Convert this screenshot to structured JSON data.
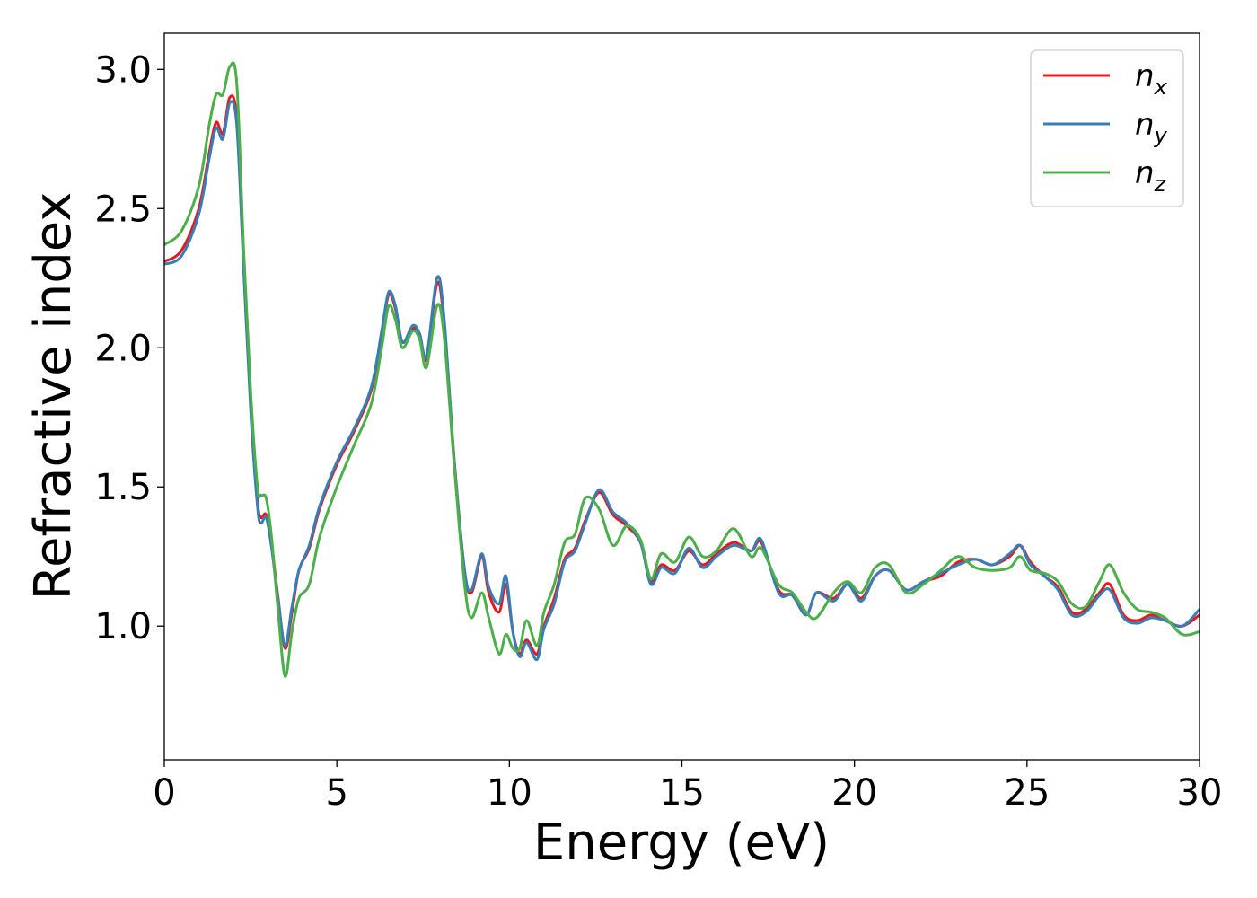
{
  "chart_data": {
    "type": "line",
    "title": "",
    "xlabel": "Energy (eV)",
    "ylabel": "Refractive index",
    "xlim": [
      0,
      30
    ],
    "ylim": [
      0.52,
      3.13
    ],
    "xticks": [
      0,
      5,
      10,
      15,
      20,
      25,
      30
    ],
    "yticks": [
      1.0,
      1.5,
      2.0,
      2.5,
      3.0
    ],
    "xtick_labels": [
      "0",
      "5",
      "10",
      "15",
      "20",
      "25",
      "30"
    ],
    "ytick_labels": [
      "1.0",
      "1.5",
      "2.0",
      "2.5",
      "3.0"
    ],
    "grid": false,
    "legend_position": "top-right",
    "series": [
      {
        "name": "n_x",
        "label_main": "n",
        "label_sub": "x",
        "color": "#e41a1c",
        "points": [
          [
            0,
            2.31
          ],
          [
            0.5,
            2.35
          ],
          [
            1.0,
            2.5
          ],
          [
            1.3,
            2.7
          ],
          [
            1.5,
            2.81
          ],
          [
            1.7,
            2.77
          ],
          [
            1.9,
            2.9
          ],
          [
            2.1,
            2.82
          ],
          [
            2.3,
            2.3
          ],
          [
            2.5,
            1.8
          ],
          [
            2.7,
            1.45
          ],
          [
            2.8,
            1.39
          ],
          [
            2.95,
            1.4
          ],
          [
            3.1,
            1.3
          ],
          [
            3.3,
            1.1
          ],
          [
            3.5,
            0.92
          ],
          [
            3.7,
            1.05
          ],
          [
            3.9,
            1.2
          ],
          [
            4.2,
            1.28
          ],
          [
            4.5,
            1.42
          ],
          [
            5.0,
            1.58
          ],
          [
            5.5,
            1.7
          ],
          [
            6.0,
            1.85
          ],
          [
            6.3,
            2.05
          ],
          [
            6.5,
            2.19
          ],
          [
            6.7,
            2.14
          ],
          [
            6.9,
            2.02
          ],
          [
            7.2,
            2.07
          ],
          [
            7.4,
            2.04
          ],
          [
            7.6,
            1.96
          ],
          [
            7.9,
            2.23
          ],
          [
            8.1,
            2.1
          ],
          [
            8.4,
            1.6
          ],
          [
            8.7,
            1.2
          ],
          [
            8.9,
            1.12
          ],
          [
            9.2,
            1.25
          ],
          [
            9.4,
            1.12
          ],
          [
            9.7,
            1.05
          ],
          [
            9.9,
            1.15
          ],
          [
            10.1,
            0.98
          ],
          [
            10.3,
            0.9
          ],
          [
            10.5,
            0.95
          ],
          [
            10.8,
            0.9
          ],
          [
            11.0,
            1.0
          ],
          [
            11.3,
            1.1
          ],
          [
            11.6,
            1.24
          ],
          [
            11.9,
            1.28
          ],
          [
            12.2,
            1.38
          ],
          [
            12.6,
            1.48
          ],
          [
            13.0,
            1.4
          ],
          [
            13.4,
            1.36
          ],
          [
            13.8,
            1.3
          ],
          [
            14.1,
            1.16
          ],
          [
            14.4,
            1.22
          ],
          [
            14.8,
            1.2
          ],
          [
            15.2,
            1.27
          ],
          [
            15.6,
            1.22
          ],
          [
            16.0,
            1.26
          ],
          [
            16.5,
            1.3
          ],
          [
            17.0,
            1.27
          ],
          [
            17.3,
            1.3
          ],
          [
            17.8,
            1.13
          ],
          [
            18.2,
            1.11
          ],
          [
            18.6,
            1.04
          ],
          [
            18.9,
            1.12
          ],
          [
            19.4,
            1.1
          ],
          [
            19.8,
            1.15
          ],
          [
            20.2,
            1.1
          ],
          [
            20.6,
            1.18
          ],
          [
            21.0,
            1.2
          ],
          [
            21.5,
            1.13
          ],
          [
            22.0,
            1.16
          ],
          [
            22.5,
            1.18
          ],
          [
            23.0,
            1.23
          ],
          [
            23.5,
            1.24
          ],
          [
            24.0,
            1.22
          ],
          [
            24.5,
            1.25
          ],
          [
            24.8,
            1.29
          ],
          [
            25.1,
            1.23
          ],
          [
            25.5,
            1.18
          ],
          [
            25.9,
            1.14
          ],
          [
            26.3,
            1.05
          ],
          [
            26.7,
            1.06
          ],
          [
            27.1,
            1.12
          ],
          [
            27.4,
            1.15
          ],
          [
            27.8,
            1.04
          ],
          [
            28.2,
            1.02
          ],
          [
            28.6,
            1.04
          ],
          [
            29.0,
            1.02
          ],
          [
            29.5,
            1.0
          ],
          [
            30,
            1.04
          ]
        ]
      },
      {
        "name": "n_y",
        "label_main": "n",
        "label_sub": "y",
        "color": "#377eb8",
        "points": [
          [
            0,
            2.3
          ],
          [
            0.5,
            2.33
          ],
          [
            1.0,
            2.48
          ],
          [
            1.3,
            2.68
          ],
          [
            1.5,
            2.79
          ],
          [
            1.7,
            2.75
          ],
          [
            1.9,
            2.88
          ],
          [
            2.1,
            2.8
          ],
          [
            2.3,
            2.28
          ],
          [
            2.5,
            1.78
          ],
          [
            2.7,
            1.43
          ],
          [
            2.8,
            1.37
          ],
          [
            2.95,
            1.39
          ],
          [
            3.1,
            1.29
          ],
          [
            3.3,
            1.09
          ],
          [
            3.5,
            0.93
          ],
          [
            3.7,
            1.07
          ],
          [
            3.9,
            1.2
          ],
          [
            4.2,
            1.29
          ],
          [
            4.5,
            1.43
          ],
          [
            5.0,
            1.59
          ],
          [
            5.5,
            1.71
          ],
          [
            6.0,
            1.86
          ],
          [
            6.3,
            2.06
          ],
          [
            6.5,
            2.2
          ],
          [
            6.7,
            2.15
          ],
          [
            6.9,
            2.02
          ],
          [
            7.2,
            2.08
          ],
          [
            7.4,
            2.05
          ],
          [
            7.6,
            1.97
          ],
          [
            7.9,
            2.25
          ],
          [
            8.1,
            2.12
          ],
          [
            8.4,
            1.6
          ],
          [
            8.7,
            1.2
          ],
          [
            8.9,
            1.13
          ],
          [
            9.2,
            1.26
          ],
          [
            9.4,
            1.14
          ],
          [
            9.7,
            1.08
          ],
          [
            9.9,
            1.18
          ],
          [
            10.1,
            0.98
          ],
          [
            10.3,
            0.89
          ],
          [
            10.5,
            0.94
          ],
          [
            10.8,
            0.88
          ],
          [
            11.0,
            0.99
          ],
          [
            11.3,
            1.08
          ],
          [
            11.6,
            1.23
          ],
          [
            11.9,
            1.27
          ],
          [
            12.2,
            1.37
          ],
          [
            12.6,
            1.49
          ],
          [
            13.0,
            1.41
          ],
          [
            13.4,
            1.37
          ],
          [
            13.8,
            1.3
          ],
          [
            14.1,
            1.15
          ],
          [
            14.4,
            1.21
          ],
          [
            14.8,
            1.19
          ],
          [
            15.2,
            1.28
          ],
          [
            15.6,
            1.21
          ],
          [
            16.0,
            1.25
          ],
          [
            16.5,
            1.29
          ],
          [
            17.0,
            1.27
          ],
          [
            17.3,
            1.31
          ],
          [
            17.8,
            1.12
          ],
          [
            18.2,
            1.11
          ],
          [
            18.6,
            1.04
          ],
          [
            18.9,
            1.12
          ],
          [
            19.4,
            1.09
          ],
          [
            19.8,
            1.15
          ],
          [
            20.2,
            1.09
          ],
          [
            20.6,
            1.18
          ],
          [
            21.0,
            1.2
          ],
          [
            21.5,
            1.13
          ],
          [
            22.0,
            1.16
          ],
          [
            22.5,
            1.19
          ],
          [
            23.0,
            1.22
          ],
          [
            23.5,
            1.24
          ],
          [
            24.0,
            1.22
          ],
          [
            24.5,
            1.26
          ],
          [
            24.8,
            1.29
          ],
          [
            25.1,
            1.22
          ],
          [
            25.5,
            1.18
          ],
          [
            25.9,
            1.13
          ],
          [
            26.3,
            1.04
          ],
          [
            26.7,
            1.05
          ],
          [
            27.1,
            1.11
          ],
          [
            27.4,
            1.13
          ],
          [
            27.8,
            1.03
          ],
          [
            28.2,
            1.01
          ],
          [
            28.6,
            1.03
          ],
          [
            29.0,
            1.02
          ],
          [
            29.5,
            1.0
          ],
          [
            30,
            1.06
          ]
        ]
      },
      {
        "name": "n_z",
        "label_main": "n",
        "label_sub": "z",
        "color": "#4daf4a",
        "points": [
          [
            0,
            2.37
          ],
          [
            0.5,
            2.42
          ],
          [
            1.0,
            2.58
          ],
          [
            1.3,
            2.8
          ],
          [
            1.5,
            2.91
          ],
          [
            1.7,
            2.91
          ],
          [
            1.9,
            3.01
          ],
          [
            2.1,
            2.95
          ],
          [
            2.3,
            2.35
          ],
          [
            2.5,
            1.85
          ],
          [
            2.7,
            1.5
          ],
          [
            2.8,
            1.47
          ],
          [
            2.95,
            1.46
          ],
          [
            3.1,
            1.33
          ],
          [
            3.3,
            1.05
          ],
          [
            3.5,
            0.82
          ],
          [
            3.7,
            0.98
          ],
          [
            3.9,
            1.1
          ],
          [
            4.2,
            1.15
          ],
          [
            4.5,
            1.32
          ],
          [
            5.0,
            1.5
          ],
          [
            5.5,
            1.65
          ],
          [
            6.0,
            1.8
          ],
          [
            6.3,
            2.0
          ],
          [
            6.5,
            2.15
          ],
          [
            6.7,
            2.1
          ],
          [
            6.9,
            2.0
          ],
          [
            7.2,
            2.06
          ],
          [
            7.4,
            2.03
          ],
          [
            7.6,
            1.93
          ],
          [
            7.9,
            2.15
          ],
          [
            8.1,
            2.05
          ],
          [
            8.4,
            1.58
          ],
          [
            8.7,
            1.15
          ],
          [
            8.9,
            1.03
          ],
          [
            9.2,
            1.12
          ],
          [
            9.4,
            1.03
          ],
          [
            9.7,
            0.9
          ],
          [
            9.9,
            0.97
          ],
          [
            10.1,
            0.92
          ],
          [
            10.3,
            0.92
          ],
          [
            10.5,
            1.02
          ],
          [
            10.8,
            0.93
          ],
          [
            11.0,
            1.05
          ],
          [
            11.3,
            1.15
          ],
          [
            11.6,
            1.3
          ],
          [
            11.9,
            1.33
          ],
          [
            12.2,
            1.46
          ],
          [
            12.6,
            1.42
          ],
          [
            13.0,
            1.29
          ],
          [
            13.4,
            1.36
          ],
          [
            13.8,
            1.31
          ],
          [
            14.1,
            1.17
          ],
          [
            14.4,
            1.26
          ],
          [
            14.8,
            1.23
          ],
          [
            15.2,
            1.32
          ],
          [
            15.6,
            1.25
          ],
          [
            16.0,
            1.27
          ],
          [
            16.5,
            1.35
          ],
          [
            17.0,
            1.25
          ],
          [
            17.3,
            1.28
          ],
          [
            17.8,
            1.15
          ],
          [
            18.2,
            1.12
          ],
          [
            18.6,
            1.05
          ],
          [
            18.9,
            1.03
          ],
          [
            19.4,
            1.12
          ],
          [
            19.8,
            1.16
          ],
          [
            20.2,
            1.12
          ],
          [
            20.6,
            1.21
          ],
          [
            21.0,
            1.22
          ],
          [
            21.5,
            1.12
          ],
          [
            22.0,
            1.15
          ],
          [
            22.5,
            1.2
          ],
          [
            23.0,
            1.25
          ],
          [
            23.5,
            1.21
          ],
          [
            24.0,
            1.2
          ],
          [
            24.5,
            1.21
          ],
          [
            24.8,
            1.25
          ],
          [
            25.1,
            1.2
          ],
          [
            25.5,
            1.19
          ],
          [
            25.9,
            1.16
          ],
          [
            26.3,
            1.08
          ],
          [
            26.7,
            1.07
          ],
          [
            27.1,
            1.16
          ],
          [
            27.4,
            1.22
          ],
          [
            27.8,
            1.12
          ],
          [
            28.2,
            1.06
          ],
          [
            28.6,
            1.05
          ],
          [
            29.0,
            1.03
          ],
          [
            29.5,
            0.97
          ],
          [
            30,
            0.98
          ]
        ]
      }
    ]
  }
}
